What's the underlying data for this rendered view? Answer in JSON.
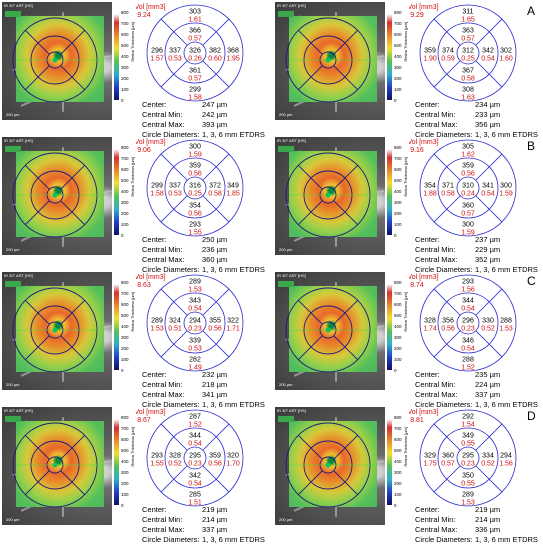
{
  "panels": [
    {
      "id": "A-left",
      "letter": "",
      "tag": "IR 30° ART [HS]",
      "scale": "200 µm",
      "vol_label": "Vol [mm3]",
      "vol": "9.24",
      "thickness": {
        "center": "326",
        "inner_top": "366",
        "inner_left": "337",
        "inner_right": "382",
        "inner_bottom": "361",
        "outer_top": "303",
        "outer_left": "296",
        "outer_right": "368",
        "outer_bottom": "299"
      },
      "volume": {
        "center": "0.26",
        "inner_top": "0.57",
        "inner_left": "0.53",
        "inner_right": "0.60",
        "inner_bottom": "0.57",
        "outer_top": "1.61",
        "outer_left": "1.57",
        "outer_right": "1.95",
        "outer_bottom": "1.58"
      },
      "stats": {
        "center": "247 µm",
        "central_min": "242 µm",
        "central_max": "393 µm",
        "circle": "1, 3, 6 mm ETDRS"
      }
    },
    {
      "id": "A-right",
      "letter": "A",
      "tag": "IR 30° ART [HS]",
      "scale": "200 µm",
      "vol_label": "Vol [mm3]",
      "vol": "9.29",
      "thickness": {
        "center": "312",
        "inner_top": "363",
        "inner_left": "374",
        "inner_right": "342",
        "inner_bottom": "367",
        "outer_top": "311",
        "outer_left": "359",
        "outer_right": "302",
        "outer_bottom": "308"
      },
      "volume": {
        "center": "0.25",
        "inner_top": "0.57",
        "inner_left": "0.59",
        "inner_right": "0.54",
        "inner_bottom": "0.58",
        "outer_top": "1.65",
        "outer_left": "1.90",
        "outer_right": "1.60",
        "outer_bottom": "1.63"
      },
      "stats": {
        "center": "234 µm",
        "central_min": "233 µm",
        "central_max": "356 µm",
        "circle": "1, 3, 6 mm ETDRS"
      }
    },
    {
      "id": "B-left",
      "letter": "",
      "tag": "IR 30° ART [HS]",
      "scale": "200 µm",
      "vol_label": "Vol [mm3]",
      "vol": "9.06",
      "thickness": {
        "center": "316",
        "inner_top": "359",
        "inner_left": "337",
        "inner_right": "372",
        "inner_bottom": "354",
        "outer_top": "300",
        "outer_left": "299",
        "outer_right": "349",
        "outer_bottom": "293"
      },
      "volume": {
        "center": "0.25",
        "inner_top": "0.56",
        "inner_left": "0.53",
        "inner_right": "0.58",
        "inner_bottom": "0.56",
        "outer_top": "1.59",
        "outer_left": "1.58",
        "outer_right": "1.85",
        "outer_bottom": "1.55"
      },
      "stats": {
        "center": "250 µm",
        "central_min": "236 µm",
        "central_max": "360 µm",
        "circle": "1, 3, 6 mm ETDRS"
      }
    },
    {
      "id": "B-right",
      "letter": "B",
      "tag": "IR 30° ART [HS]",
      "scale": "200 µm",
      "vol_label": "Vol [mm3]",
      "vol": "9.16",
      "thickness": {
        "center": "310",
        "inner_top": "359",
        "inner_left": "371",
        "inner_right": "341",
        "inner_bottom": "360",
        "outer_top": "305",
        "outer_left": "354",
        "outer_right": "300",
        "outer_bottom": "300"
      },
      "volume": {
        "center": "0.24",
        "inner_top": "0.56",
        "inner_left": "0.58",
        "inner_right": "0.54",
        "inner_bottom": "0.57",
        "outer_top": "1.62",
        "outer_left": "1.88",
        "outer_right": "1.59",
        "outer_bottom": "1.59"
      },
      "stats": {
        "center": "237 µm",
        "central_min": "229 µm",
        "central_max": "352 µm",
        "circle": "1, 3, 6 mm ETDRS"
      }
    },
    {
      "id": "C-left",
      "letter": "",
      "tag": "IR 30° ART [HS]",
      "scale": "200 µm",
      "vol_label": "Vol [mm3]",
      "vol": "8.63",
      "thickness": {
        "center": "294",
        "inner_top": "343",
        "inner_left": "324",
        "inner_right": "355",
        "inner_bottom": "339",
        "outer_top": "289",
        "outer_left": "289",
        "outer_right": "322",
        "outer_bottom": "282"
      },
      "volume": {
        "center": "0.23",
        "inner_top": "0.54",
        "inner_left": "0.51",
        "inner_right": "0.56",
        "inner_bottom": "0.53",
        "outer_top": "1.53",
        "outer_left": "1.53",
        "outer_right": "1.71",
        "outer_bottom": "1.49"
      },
      "stats": {
        "center": "232 µm",
        "central_min": "218 µm",
        "central_max": "341 µm",
        "circle": "1, 3, 6 mm ETDRS"
      }
    },
    {
      "id": "C-right",
      "letter": "C",
      "tag": "IR 30° ART [HS]",
      "scale": "200 µm",
      "vol_label": "Vol [mm3]",
      "vol": "8.74",
      "thickness": {
        "center": "296",
        "inner_top": "344",
        "inner_left": "356",
        "inner_right": "330",
        "inner_bottom": "346",
        "outer_top": "293",
        "outer_left": "328",
        "outer_right": "288",
        "outer_bottom": "288"
      },
      "volume": {
        "center": "0.23",
        "inner_top": "0.54",
        "inner_left": "0.56",
        "inner_right": "0.52",
        "inner_bottom": "0.54",
        "outer_top": "1.56",
        "outer_left": "1.74",
        "outer_right": "1.53",
        "outer_bottom": "1.52"
      },
      "stats": {
        "center": "235 µm",
        "central_min": "224 µm",
        "central_max": "337 µm",
        "circle": "1, 3, 6 mm ETDRS"
      }
    },
    {
      "id": "D-left",
      "letter": "",
      "tag": "IR 30° ART [HS]",
      "scale": "200 µm",
      "vol_label": "Vol [mm3]",
      "vol": "8.67",
      "thickness": {
        "center": "295",
        "inner_top": "344",
        "inner_left": "328",
        "inner_right": "359",
        "inner_bottom": "342",
        "outer_top": "287",
        "outer_left": "293",
        "outer_right": "320",
        "outer_bottom": "285"
      },
      "volume": {
        "center": "0.23",
        "inner_top": "0.54",
        "inner_left": "0.52",
        "inner_right": "0.56",
        "inner_bottom": "0.54",
        "outer_top": "1.52",
        "outer_left": "1.55",
        "outer_right": "1.70",
        "outer_bottom": "1.51"
      },
      "stats": {
        "center": "219 µm",
        "central_min": "214 µm",
        "central_max": "337 µm",
        "circle": "1, 3, 6 mm ETDRS"
      }
    },
    {
      "id": "D-right",
      "letter": "D",
      "tag": "IR 30° ART [HS]",
      "scale": "200 µm",
      "vol_label": "Vol [mm3]",
      "vol": "8.81",
      "thickness": {
        "center": "295",
        "inner_top": "349",
        "inner_left": "360",
        "inner_right": "334",
        "inner_bottom": "350",
        "outer_top": "292",
        "outer_left": "329",
        "outer_right": "294",
        "outer_bottom": "289"
      },
      "volume": {
        "center": "0.23",
        "inner_top": "0.55",
        "inner_left": "0.57",
        "inner_right": "0.52",
        "inner_bottom": "0.55",
        "outer_top": "1.54",
        "outer_left": "1.75",
        "outer_right": "1.56",
        "outer_bottom": "1.53"
      },
      "stats": {
        "center": "219 µm",
        "central_min": "214 µm",
        "central_max": "336 µm",
        "circle": "1, 3, 6 mm ETDRS"
      }
    }
  ],
  "colorbar_ticks": [
    "800",
    "700",
    "600",
    "500",
    "400",
    "300",
    "200",
    "100",
    "0"
  ],
  "colorbar_label": "Retina Thickness [µm]",
  "stat_labels": {
    "center": "Center:",
    "central_min": "Central Min:",
    "central_max": "Central Max:",
    "circle": "Circle Diameters:"
  },
  "colors": {
    "ring": "#2a2ad0",
    "value_thickness": "#000000",
    "value_volume": "#d01010"
  }
}
